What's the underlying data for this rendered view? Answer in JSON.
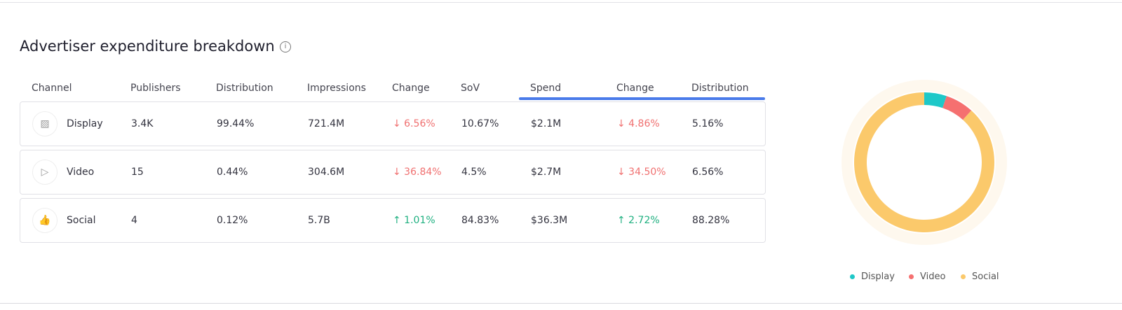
{
  "title": "Advertiser expenditure breakdown",
  "headers": [
    "Channel",
    "Publishers",
    "Distribution",
    "Impressions",
    "Change",
    "SoV",
    "Spend",
    "Change",
    "Distribution"
  ],
  "rows": [
    {
      "channel": "Display",
      "icon": "image-icon",
      "publishers": "3.4K",
      "distribution": "99.44%",
      "impressions": "721.4M",
      "change": "↓ 6.56%",
      "change_dir": "down",
      "sov": "10.67%",
      "spend": "$2.1M",
      "spend_change": "↓ 4.86%",
      "spend_change_dir": "down",
      "spend_distribution": "5.16%"
    },
    {
      "channel": "Video",
      "icon": "play-icon",
      "publishers": "15",
      "distribution": "0.44%",
      "impressions": "304.6M",
      "change": "↓ 36.84%",
      "change_dir": "down",
      "sov": "4.5%",
      "spend": "$2.7M",
      "spend_change": "↓ 34.50%",
      "spend_change_dir": "down",
      "spend_distribution": "6.56%"
    },
    {
      "channel": "Social",
      "icon": "thumbs-up-icon",
      "publishers": "4",
      "distribution": "0.12%",
      "impressions": "5.7B",
      "change": "↑ 1.01%",
      "change_dir": "up",
      "sov": "84.83%",
      "spend": "$36.3M",
      "spend_change": "↑ 2.72%",
      "spend_change_dir": "up",
      "spend_distribution": "88.28%"
    }
  ],
  "chart_data": {
    "type": "pie",
    "categories": [
      "Display",
      "Video",
      "Social"
    ],
    "values": [
      5.16,
      6.56,
      88.28
    ],
    "colors": [
      "#1ec8c8",
      "#f57070",
      "#fbc96b"
    ],
    "legend": "bottom"
  }
}
